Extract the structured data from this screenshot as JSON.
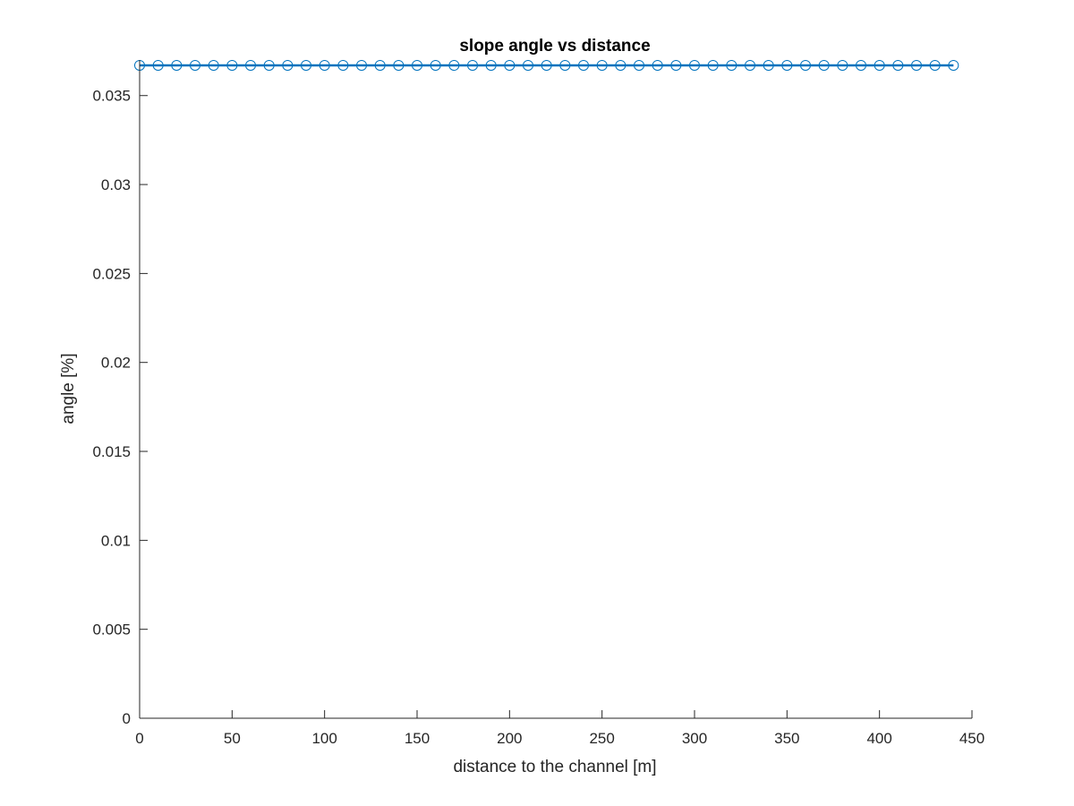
{
  "chart_data": {
    "type": "line",
    "title": "slope angle vs distance",
    "xlabel": "distance to the channel [m]",
    "ylabel": "angle [%]",
    "xlim": [
      0,
      450
    ],
    "ylim": [
      0,
      0.037
    ],
    "xticks": [
      0,
      50,
      100,
      150,
      200,
      250,
      300,
      350,
      400,
      450
    ],
    "xtick_labels": [
      "0",
      "50",
      "100",
      "150",
      "200",
      "250",
      "300",
      "350",
      "400",
      "450"
    ],
    "yticks": [
      0,
      0.005,
      0.01,
      0.015,
      0.02,
      0.025,
      0.03,
      0.035
    ],
    "ytick_labels": [
      "0",
      "0.005",
      "0.01",
      "0.015",
      "0.02",
      "0.025",
      "0.03",
      "0.035"
    ],
    "grid": false,
    "marker": "circle",
    "series": [
      {
        "color": "#0072BD",
        "x": [
          0,
          10,
          20,
          30,
          40,
          50,
          60,
          70,
          80,
          90,
          100,
          110,
          120,
          130,
          140,
          150,
          160,
          170,
          180,
          190,
          200,
          210,
          220,
          230,
          240,
          250,
          260,
          270,
          280,
          290,
          300,
          310,
          320,
          330,
          340,
          350,
          360,
          370,
          380,
          390,
          400,
          410,
          420,
          430,
          440
        ],
        "y": [
          0.0367,
          0.0367,
          0.0367,
          0.0367,
          0.0367,
          0.0367,
          0.0367,
          0.0367,
          0.0367,
          0.0367,
          0.0367,
          0.0367,
          0.0367,
          0.0367,
          0.0367,
          0.0367,
          0.0367,
          0.0367,
          0.0367,
          0.0367,
          0.0367,
          0.0367,
          0.0367,
          0.0367,
          0.0367,
          0.0367,
          0.0367,
          0.0367,
          0.0367,
          0.0367,
          0.0367,
          0.0367,
          0.0367,
          0.0367,
          0.0367,
          0.0367,
          0.0367,
          0.0367,
          0.0367,
          0.0367,
          0.0367,
          0.0367,
          0.0367,
          0.0367,
          0.0367
        ]
      }
    ]
  }
}
